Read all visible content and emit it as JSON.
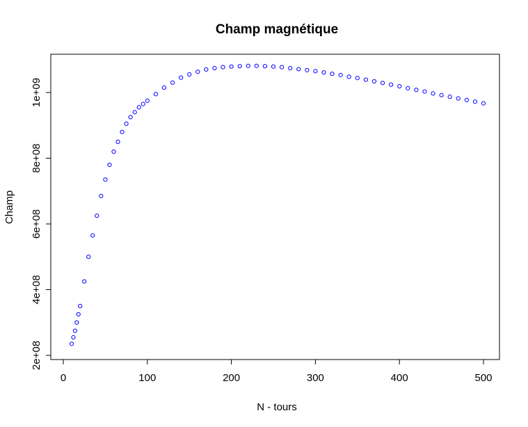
{
  "chart_data": {
    "type": "scatter",
    "title": "Champ magnétique",
    "xlabel": "N - tours",
    "ylabel": "Champ",
    "xlim": [
      0,
      520
    ],
    "ylim": [
      200000000,
      1100000000
    ],
    "x_ticks": [
      0,
      100,
      200,
      300,
      400,
      500
    ],
    "x_tick_labels": [
      "0",
      "100",
      "200",
      "300",
      "400",
      "500"
    ],
    "y_ticks": [
      200000000,
      400000000,
      600000000,
      800000000,
      1000000000
    ],
    "y_tick_labels": [
      "2e+08",
      "4e+08",
      "6e+08",
      "8e+08",
      "1e+09"
    ],
    "grid": false,
    "marker": "open-circle",
    "point_color": "#0000ff",
    "series": [
      {
        "x": [
          10,
          12,
          14,
          16,
          18,
          20,
          25,
          30,
          35,
          40,
          45,
          50,
          55,
          60,
          65,
          70,
          75,
          80,
          85,
          90,
          95,
          100,
          110,
          120,
          130,
          140,
          150,
          160,
          170,
          180,
          190,
          200,
          210,
          220,
          230,
          240,
          250,
          260,
          270,
          280,
          290,
          300,
          310,
          320,
          330,
          340,
          350,
          360,
          370,
          380,
          390,
          400,
          410,
          420,
          430,
          440,
          450,
          460,
          470,
          480,
          490,
          500
        ],
        "y": [
          235000000,
          255000000,
          275000000,
          300000000,
          325000000,
          350000000,
          425000000,
          500000000,
          565000000,
          625000000,
          685000000,
          735000000,
          780000000,
          820000000,
          850000000,
          880000000,
          905000000,
          925000000,
          940000000,
          955000000,
          965000000,
          975000000,
          995000000,
          1015000000,
          1030000000,
          1045000000,
          1055000000,
          1063000000,
          1070000000,
          1074000000,
          1077000000,
          1079000000,
          1080000000,
          1081000000,
          1081000000,
          1080000000,
          1079000000,
          1077000000,
          1074000000,
          1071000000,
          1068000000,
          1065000000,
          1061000000,
          1057000000,
          1053000000,
          1048000000,
          1044000000,
          1039000000,
          1034000000,
          1029000000,
          1024000000,
          1019000000,
          1013000000,
          1008000000,
          1003000000,
          997000000,
          992000000,
          987000000,
          982000000,
          977000000,
          972000000,
          967000000
        ]
      }
    ]
  }
}
